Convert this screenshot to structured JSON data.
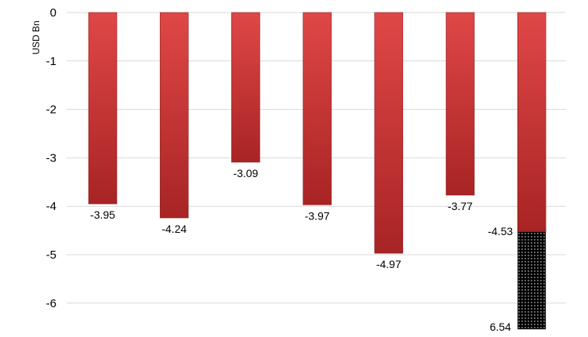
{
  "chart_data": {
    "type": "bar",
    "title": "",
    "xlabel": "",
    "ylabel": "USD Bn",
    "ylim": [
      -6.6,
      0
    ],
    "yticks": [
      0,
      -1,
      -2,
      -3,
      -4,
      -5,
      -6
    ],
    "ytick_labels": [
      "0",
      "-1",
      "-2",
      "-3",
      "-4",
      "-5",
      "-6"
    ],
    "grid": true,
    "legend": "none",
    "categories": [
      "",
      "",
      "",
      "",
      "",
      "",
      ""
    ],
    "values": [
      -3.95,
      -4.24,
      -3.09,
      -3.97,
      -4.97,
      -3.77,
      -4.53
    ],
    "value_labels": [
      "-3.95",
      "-4.24",
      "-3.09",
      "-3.97",
      "-4.97",
      "-3.77",
      "-4.53"
    ],
    "stacked_segment": {
      "category_index": 6,
      "start": -4.53,
      "end": -6.54,
      "label": "6.54",
      "pattern": "black-dotted"
    },
    "colors": {
      "bar_light": "#e04545",
      "bar_dark": "#b02525",
      "segment": "#000000",
      "grid": "#d9d9d9"
    }
  }
}
